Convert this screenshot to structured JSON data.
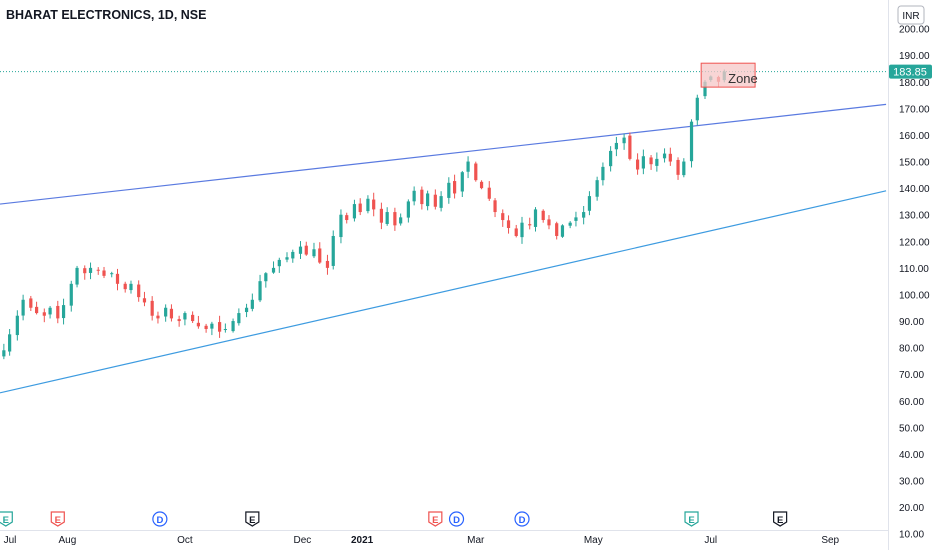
{
  "header": {
    "title": "BHARAT ELECTRONICS, 1D, NSE",
    "currency": "INR"
  },
  "price_label": "183.85",
  "annotation": {
    "label": "Zone",
    "price_low": 178,
    "price_high": 187
  },
  "event_markers": [
    {
      "label": "E",
      "kind": "earnings",
      "date": "2020-06-30",
      "color": "#26a69a"
    },
    {
      "label": "E",
      "kind": "earnings",
      "date": "2020-07-27",
      "color": "#ef5350"
    },
    {
      "label": "D",
      "kind": "dividend",
      "date": "2020-09-18",
      "color": "#2962ff"
    },
    {
      "label": "E",
      "kind": "earnings",
      "date": "2020-11-05",
      "color": "#131722"
    },
    {
      "label": "E",
      "kind": "earnings",
      "date": "2021-02-08",
      "color": "#ef5350"
    },
    {
      "label": "D",
      "kind": "dividend",
      "date": "2021-02-19",
      "color": "#2962ff"
    },
    {
      "label": "D",
      "kind": "dividend",
      "date": "2021-03-25",
      "color": "#2962ff"
    },
    {
      "label": "E",
      "kind": "earnings",
      "date": "2021-06-21",
      "color": "#26a69a"
    },
    {
      "label": "E",
      "kind": "earnings",
      "date": "2021-08-06",
      "color": "#131722"
    }
  ],
  "chart_data": {
    "type": "candlestick",
    "title": "BHARAT ELECTRONICS, 1D, NSE",
    "x_axis": {
      "type": "date",
      "range": [
        "2020-06-27",
        "2021-10-01"
      ],
      "ticks": [
        {
          "date": "2020-07-01",
          "label": "Jul"
        },
        {
          "date": "2020-08-01",
          "label": "Aug"
        },
        {
          "date": "2020-10-01",
          "label": "Oct"
        },
        {
          "date": "2020-12-01",
          "label": "Dec"
        },
        {
          "date": "2021-01-01",
          "label": "2021"
        },
        {
          "date": "2021-03-01",
          "label": "Mar"
        },
        {
          "date": "2021-05-01",
          "label": "May"
        },
        {
          "date": "2021-07-01",
          "label": "Jul"
        },
        {
          "date": "2021-09-01",
          "label": "Sep"
        }
      ]
    },
    "y_axis": {
      "position": "right",
      "range": [
        5,
        204
      ],
      "ticks": [
        10,
        20,
        30,
        40,
        50,
        60,
        70,
        80,
        90,
        100,
        110,
        120,
        130,
        140,
        150,
        160,
        170,
        180,
        190,
        200
      ],
      "tick_labels": [
        "10.00",
        "20.00",
        "30.00",
        "40.00",
        "50.00",
        "60.00",
        "70.00",
        "80.00",
        "90.00",
        "100.00",
        "110.00",
        "120.00",
        "130.00",
        "140.00",
        "150.00",
        "160.00",
        "170.00",
        "180.00",
        "190.00",
        "200.00"
      ]
    },
    "grid": false,
    "up_color": "#26a69a",
    "down_color": "#ef5350",
    "last_price": 183.85,
    "last_price_color": "#26a69a",
    "closes": [
      [
        "2020-06-29",
        79
      ],
      [
        "2020-07-02",
        85
      ],
      [
        "2020-07-06",
        92
      ],
      [
        "2020-07-09",
        98
      ],
      [
        "2020-07-13",
        95
      ],
      [
        "2020-07-16",
        93
      ],
      [
        "2020-07-20",
        92
      ],
      [
        "2020-07-23",
        95
      ],
      [
        "2020-07-27",
        91
      ],
      [
        "2020-07-30",
        96
      ],
      [
        "2020-08-03",
        104
      ],
      [
        "2020-08-06",
        110
      ],
      [
        "2020-08-10",
        108
      ],
      [
        "2020-08-13",
        110
      ],
      [
        "2020-08-17",
        109
      ],
      [
        "2020-08-20",
        107
      ],
      [
        "2020-08-24",
        108
      ],
      [
        "2020-08-27",
        104
      ],
      [
        "2020-08-31",
        102
      ],
      [
        "2020-09-03",
        104
      ],
      [
        "2020-09-07",
        99
      ],
      [
        "2020-09-10",
        97
      ],
      [
        "2020-09-14",
        92
      ],
      [
        "2020-09-17",
        91
      ],
      [
        "2020-09-21",
        95
      ],
      [
        "2020-09-24",
        91
      ],
      [
        "2020-09-28",
        90
      ],
      [
        "2020-10-01",
        93
      ],
      [
        "2020-10-05",
        90
      ],
      [
        "2020-10-08",
        88
      ],
      [
        "2020-10-12",
        87
      ],
      [
        "2020-10-15",
        89
      ],
      [
        "2020-10-19",
        86
      ],
      [
        "2020-10-22",
        87
      ],
      [
        "2020-10-26",
        90
      ],
      [
        "2020-10-29",
        93
      ],
      [
        "2020-11-02",
        95
      ],
      [
        "2020-11-05",
        98
      ],
      [
        "2020-11-09",
        105
      ],
      [
        "2020-11-12",
        108
      ],
      [
        "2020-11-16",
        110
      ],
      [
        "2020-11-19",
        113
      ],
      [
        "2020-11-23",
        114
      ],
      [
        "2020-11-26",
        116
      ],
      [
        "2020-11-30",
        118
      ],
      [
        "2020-12-03",
        115
      ],
      [
        "2020-12-07",
        117
      ],
      [
        "2020-12-10",
        112
      ],
      [
        "2020-12-14",
        110
      ],
      [
        "2020-12-17",
        122
      ],
      [
        "2020-12-21",
        130
      ],
      [
        "2020-12-24",
        128
      ],
      [
        "2020-12-28",
        134
      ],
      [
        "2020-12-31",
        131
      ],
      [
        "2021-01-04",
        136
      ],
      [
        "2021-01-07",
        132
      ],
      [
        "2021-01-11",
        127
      ],
      [
        "2021-01-14",
        131
      ],
      [
        "2021-01-18",
        126
      ],
      [
        "2021-01-21",
        129
      ],
      [
        "2021-01-25",
        135
      ],
      [
        "2021-01-28",
        139
      ],
      [
        "2021-02-01",
        134
      ],
      [
        "2021-02-04",
        138
      ],
      [
        "2021-02-08",
        133
      ],
      [
        "2021-02-11",
        137
      ],
      [
        "2021-02-15",
        142
      ],
      [
        "2021-02-18",
        138
      ],
      [
        "2021-02-22",
        146
      ],
      [
        "2021-02-25",
        150
      ],
      [
        "2021-03-01",
        143
      ],
      [
        "2021-03-04",
        140
      ],
      [
        "2021-03-08",
        136
      ],
      [
        "2021-03-11",
        131
      ],
      [
        "2021-03-15",
        128
      ],
      [
        "2021-03-18",
        125
      ],
      [
        "2021-03-22",
        122
      ],
      [
        "2021-03-25",
        127
      ],
      [
        "2021-03-29",
        126
      ],
      [
        "2021-04-01",
        132
      ],
      [
        "2021-04-05",
        128
      ],
      [
        "2021-04-08",
        126
      ],
      [
        "2021-04-12",
        122
      ],
      [
        "2021-04-15",
        126
      ],
      [
        "2021-04-19",
        127
      ],
      [
        "2021-04-22",
        129
      ],
      [
        "2021-04-26",
        131
      ],
      [
        "2021-04-29",
        137
      ],
      [
        "2021-05-03",
        143
      ],
      [
        "2021-05-06",
        148
      ],
      [
        "2021-05-10",
        154
      ],
      [
        "2021-05-13",
        157
      ],
      [
        "2021-05-17",
        159
      ],
      [
        "2021-05-20",
        151
      ],
      [
        "2021-05-24",
        147
      ],
      [
        "2021-05-27",
        152
      ],
      [
        "2021-05-31",
        149
      ],
      [
        "2021-06-03",
        151
      ],
      [
        "2021-06-07",
        153
      ],
      [
        "2021-06-10",
        150
      ],
      [
        "2021-06-14",
        145
      ],
      [
        "2021-06-17",
        150
      ],
      [
        "2021-06-21",
        165
      ],
      [
        "2021-06-24",
        174
      ],
      [
        "2021-06-28",
        180
      ],
      [
        "2021-07-01",
        182
      ],
      [
        "2021-07-05",
        180
      ],
      [
        "2021-07-08",
        183.85
      ]
    ],
    "trendlines": [
      {
        "name": "upper",
        "color": "#5a7ae0",
        "points": [
          [
            "2020-06-27",
            134
          ],
          [
            "2021-09-30",
            171.5
          ]
        ]
      },
      {
        "name": "lower",
        "color": "#3d9be0",
        "points": [
          [
            "2020-06-27",
            63
          ],
          [
            "2021-09-30",
            139
          ]
        ]
      }
    ]
  }
}
